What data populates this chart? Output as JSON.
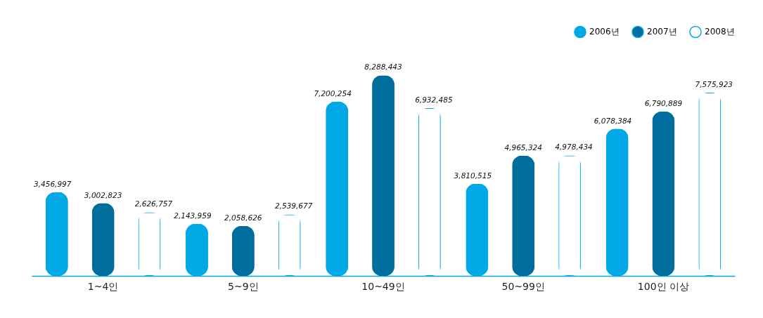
{
  "chart_data": {
    "type": "bar",
    "categories": [
      "1~4인",
      "5~9인",
      "10~49인",
      "50~99인",
      "100인 이상"
    ],
    "series": [
      {
        "name": "2006년",
        "color": "#00a8e6",
        "values": [
          3456997,
          2143959,
          7200254,
          3810515,
          6078384
        ],
        "value_labels": [
          "3,456,997",
          "2,143,959",
          "7,200,254",
          "3,810,515",
          "6,078,384"
        ]
      },
      {
        "name": "2007년",
        "color": "#006e9c",
        "values": [
          3002823,
          2058626,
          8288443,
          4965324,
          6790889
        ],
        "value_labels": [
          "3,002,823",
          "2,058,626",
          "8,288,443",
          "4,965,324",
          "6,790,889"
        ]
      },
      {
        "name": "2008년",
        "color": "#ffffff",
        "values": [
          2626757,
          2539677,
          6932485,
          4978434,
          7575923
        ],
        "value_labels": [
          "2,626,757",
          "2,539,677",
          "6,932,485",
          "4,978,434",
          "7,575,923"
        ]
      }
    ],
    "data_labels": true,
    "legend": "top right",
    "grid": false
  }
}
